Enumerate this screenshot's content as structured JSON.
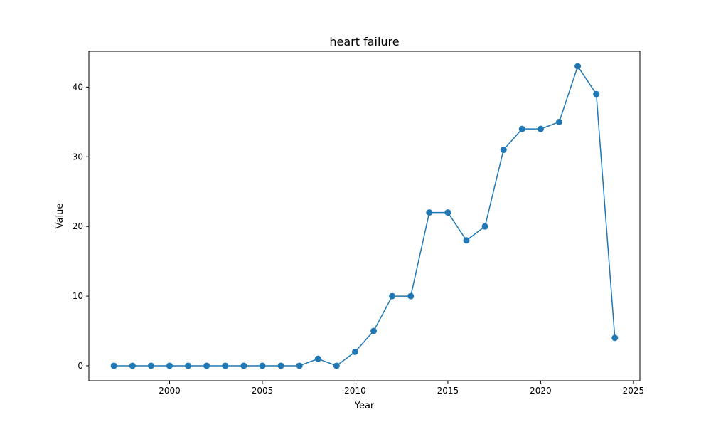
{
  "chart_data": {
    "type": "line",
    "title": "heart failure",
    "xlabel": "Year",
    "ylabel": "Value",
    "xlim": [
      1995.65,
      2025.35
    ],
    "ylim": [
      -2.15,
      45.15
    ],
    "xticks": [
      2000,
      2005,
      2010,
      2015,
      2020,
      2025
    ],
    "yticks": [
      0,
      10,
      20,
      30,
      40
    ],
    "grid": false,
    "legend": "none",
    "series": [
      {
        "color": "#1f77b4",
        "marker": "circle",
        "x": [
          1997,
          1998,
          1999,
          2000,
          2001,
          2002,
          2003,
          2004,
          2005,
          2006,
          2007,
          2008,
          2009,
          2010,
          2011,
          2012,
          2013,
          2014,
          2015,
          2016,
          2017,
          2018,
          2019,
          2020,
          2021,
          2022,
          2023,
          2024
        ],
        "y": [
          0,
          0,
          0,
          0,
          0,
          0,
          0,
          0,
          0,
          0,
          0,
          1,
          0,
          2,
          5,
          10,
          10,
          22,
          22,
          18,
          20,
          31,
          34,
          34,
          35,
          43,
          39,
          4
        ]
      }
    ]
  }
}
